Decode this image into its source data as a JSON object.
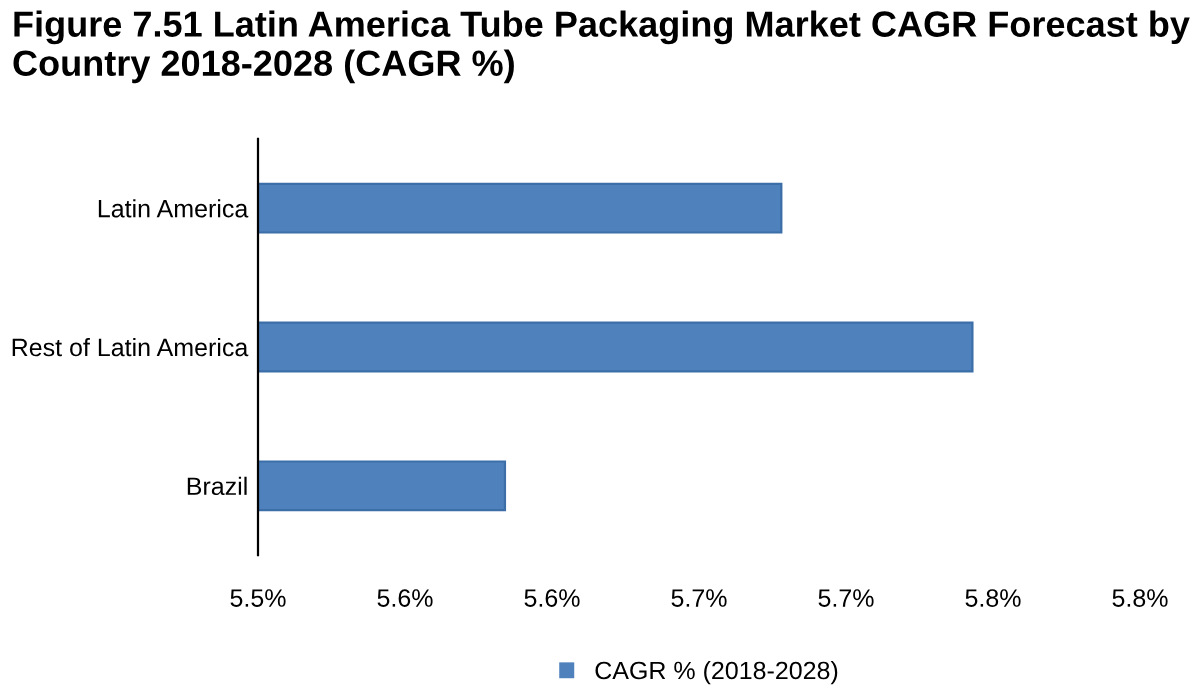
{
  "chart_data": {
    "type": "bar",
    "orientation": "horizontal",
    "title": "Figure 7.51 Latin America Tube Packaging Market CAGR Forecast by Country 2018-2028 (CAGR %)",
    "categories": [
      "Latin America",
      "Rest of Latin America",
      "Brazil"
    ],
    "series": [
      {
        "name": "CAGR % (2018-2028)",
        "color": "#4f81bd",
        "values": [
          5.678,
          5.743,
          5.584
        ]
      }
    ],
    "xlim": [
      5.5,
      5.8
    ],
    "xticks": [
      {
        "value": 5.5,
        "label": "5.5%"
      },
      {
        "value": 5.55,
        "label": "5.6%"
      },
      {
        "value": 5.6,
        "label": "5.6%"
      },
      {
        "value": 5.65,
        "label": "5.7%"
      },
      {
        "value": 5.7,
        "label": "5.7%"
      },
      {
        "value": 5.75,
        "label": "5.8%"
      },
      {
        "value": 5.8,
        "label": "5.8%"
      }
    ],
    "grid": false,
    "legend": "bottom"
  }
}
